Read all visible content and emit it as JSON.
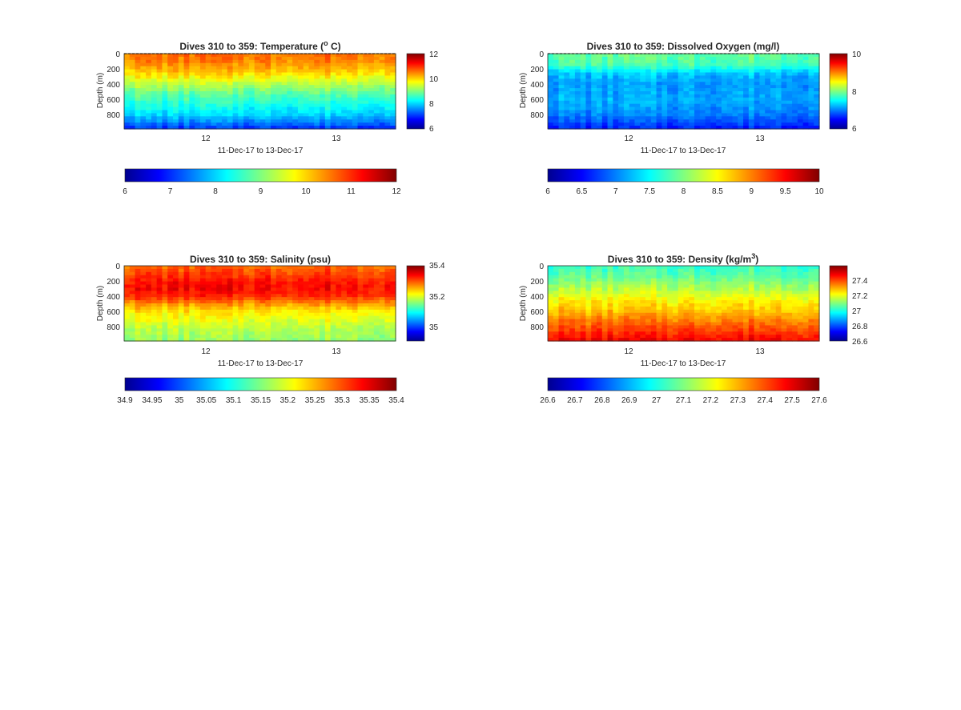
{
  "chart_data": [
    {
      "type": "heatmap",
      "title": "Dives 310 to 359: Temperature (",
      "title_sup": "o",
      "title_suffix": " C)",
      "xlabel": "11-Dec-17 to 13-Dec-17",
      "ylabel": "Depth (m)",
      "x_ticks": [
        "12",
        "13"
      ],
      "y_ticks": [
        "0",
        "200",
        "400",
        "600",
        "800"
      ],
      "ylim": [
        0,
        980
      ],
      "clim": [
        6,
        12
      ],
      "profile": [
        [
          0,
          10.6
        ],
        [
          100,
          10.5
        ],
        [
          200,
          10.2
        ],
        [
          300,
          9.8
        ],
        [
          400,
          9.3
        ],
        [
          500,
          8.9
        ],
        [
          600,
          8.6
        ],
        [
          700,
          8.3
        ],
        [
          800,
          8.0
        ],
        [
          900,
          7.5
        ],
        [
          980,
          7.0
        ]
      ],
      "colorbar_ticks": [
        "6",
        "8",
        "10",
        "12"
      ],
      "colorbar_tick_values": [
        6,
        8,
        10,
        12
      ],
      "hbar_ticks": [
        "6",
        "7",
        "8",
        "9",
        "10",
        "11",
        "12"
      ],
      "hbar_tick_values": [
        6,
        7,
        8,
        9,
        10,
        11,
        12
      ],
      "grid": false
    },
    {
      "type": "heatmap",
      "title": "Dives 310 to 359: Dissolved Oxygen (mg/l)",
      "xlabel": "11-Dec-17 to 13-Dec-17",
      "ylabel": "Depth (m)",
      "x_ticks": [
        "12",
        "13"
      ],
      "y_ticks": [
        "0",
        "200",
        "400",
        "600",
        "800"
      ],
      "ylim": [
        0,
        980
      ],
      "clim": [
        6,
        10
      ],
      "profile": [
        [
          0,
          7.9
        ],
        [
          150,
          7.8
        ],
        [
          250,
          7.3
        ],
        [
          400,
          7.1
        ],
        [
          600,
          7.2
        ],
        [
          800,
          7.0
        ],
        [
          900,
          6.8
        ],
        [
          980,
          6.6
        ]
      ],
      "colorbar_ticks": [
        "6",
        "8",
        "10"
      ],
      "colorbar_tick_values": [
        6,
        8,
        10
      ],
      "hbar_ticks": [
        "6",
        "6.5",
        "7",
        "7.5",
        "8",
        "8.5",
        "9",
        "9.5",
        "10"
      ],
      "hbar_tick_values": [
        6,
        6.5,
        7,
        7.5,
        8,
        8.5,
        9,
        9.5,
        10
      ],
      "grid": false
    },
    {
      "type": "heatmap",
      "title": "Dives 310 to 359: Salinity (psu)",
      "xlabel": "11-Dec-17 to 13-Dec-17",
      "ylabel": "Depth (m)",
      "x_ticks": [
        "12",
        "13"
      ],
      "y_ticks": [
        "0",
        "200",
        "400",
        "600",
        "800"
      ],
      "ylim": [
        0,
        980
      ],
      "clim": [
        34.93,
        35.41
      ],
      "profile": [
        [
          0,
          35.3
        ],
        [
          200,
          35.34
        ],
        [
          300,
          35.35
        ],
        [
          400,
          35.33
        ],
        [
          500,
          35.28
        ],
        [
          600,
          35.24
        ],
        [
          700,
          35.22
        ],
        [
          800,
          35.2
        ],
        [
          900,
          35.19
        ],
        [
          980,
          35.18
        ]
      ],
      "colorbar_ticks": [
        "35",
        "35.2",
        "35.4"
      ],
      "colorbar_tick_values": [
        35,
        35.2,
        35.4
      ],
      "hbar_ticks": [
        "34.9",
        "34.95",
        "35",
        "35.05",
        "35.1",
        "35.15",
        "35.2",
        "35.25",
        "35.3",
        "35.35",
        "35.4"
      ],
      "hbar_tick_values": [
        34.9,
        34.95,
        35,
        35.05,
        35.1,
        35.15,
        35.2,
        35.25,
        35.3,
        35.35,
        35.4
      ],
      "grid": false
    },
    {
      "type": "heatmap",
      "title": "Dives 310 to 359: Density (kg/m",
      "title_sup": "3",
      "title_suffix": ")",
      "xlabel": "11-Dec-17 to 13-Dec-17",
      "ylabel": "Depth (m)",
      "x_ticks": [
        "12",
        "13"
      ],
      "y_ticks": [
        "0",
        "200",
        "400",
        "600",
        "800"
      ],
      "ylim": [
        0,
        980
      ],
      "clim": [
        26.6,
        27.58
      ],
      "profile": [
        [
          0,
          27.02
        ],
        [
          100,
          27.05
        ],
        [
          200,
          27.09
        ],
        [
          300,
          27.14
        ],
        [
          400,
          27.19
        ],
        [
          500,
          27.24
        ],
        [
          600,
          27.28
        ],
        [
          700,
          27.33
        ],
        [
          800,
          27.38
        ],
        [
          900,
          27.43
        ],
        [
          980,
          27.47
        ]
      ],
      "colorbar_ticks": [
        "26.6",
        "26.8",
        "27",
        "27.2",
        "27.4"
      ],
      "colorbar_tick_values": [
        26.6,
        26.8,
        27,
        27.2,
        27.4
      ],
      "hbar_ticks": [
        "26.6",
        "26.7",
        "26.8",
        "26.9",
        "27",
        "27.1",
        "27.2",
        "27.3",
        "27.4",
        "27.5",
        "27.6"
      ],
      "hbar_tick_values": [
        26.6,
        26.7,
        26.8,
        26.9,
        27,
        27.1,
        27.2,
        27.3,
        27.4,
        27.5,
        27.6
      ],
      "grid": false
    }
  ]
}
